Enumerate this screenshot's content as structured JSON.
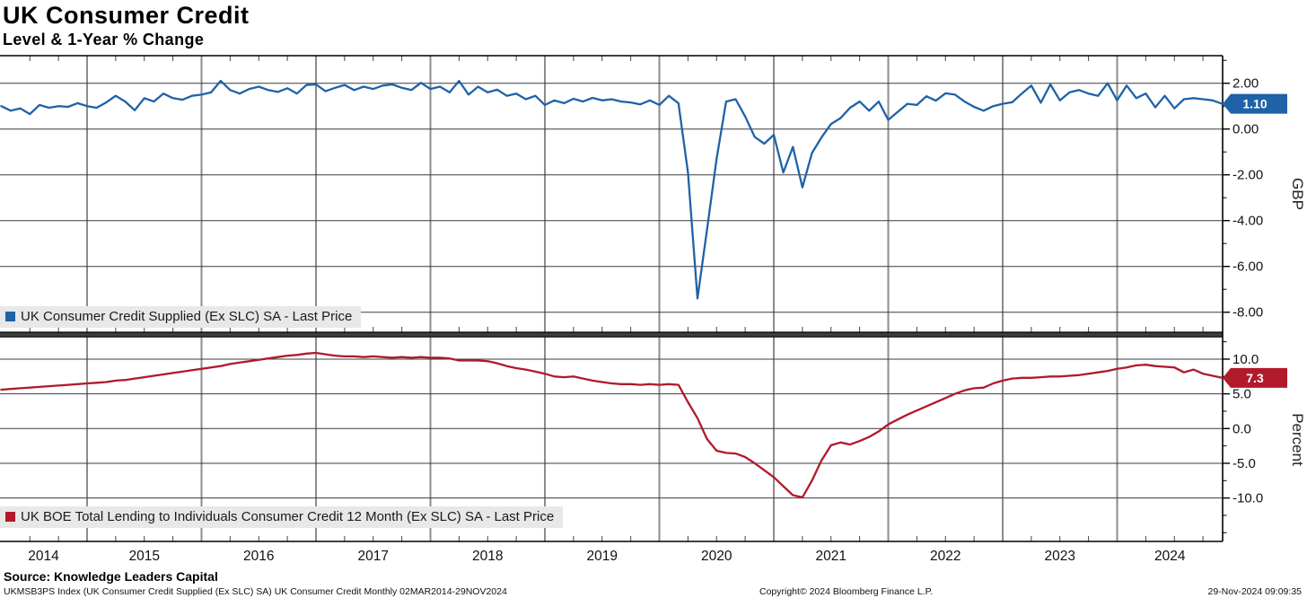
{
  "header": {
    "title": "UK Consumer Credit",
    "subtitle": "Level & 1-Year % Change"
  },
  "colors": {
    "blue_series": "#1f62a8",
    "red_series": "#b01a2b",
    "grid_vertical": "#8c8c8c",
    "grid_horizontal": "#3c3c3c",
    "axis": "#000000",
    "legend_background": "#e8e8e8",
    "badge_text": "#ffffff"
  },
  "footer": {
    "source": "Source: Knowledge Leaders Capital",
    "security_line": "UKMSB3PS Index (UK Consumer Credit Supplied (Ex SLC) SA) UK Consumer Credit  Monthly 02MAR2014-29NOV2024",
    "copyright": "Copyright© 2024 Bloomberg Finance L.P.",
    "timestamp": "29-Nov-2024 09:09:35"
  },
  "x_axis": {
    "categories": [
      "2014",
      "2015",
      "2016",
      "2017",
      "2018",
      "2019",
      "2020",
      "2021",
      "2022",
      "2023",
      "2024"
    ],
    "frequency": "monthly",
    "start": "2014-03",
    "end": "2024-11"
  },
  "chart_data": [
    {
      "type": "line",
      "panel": "top",
      "legend": "UK Consumer Credit Supplied (Ex SLC) SA - Last Price",
      "axis_title": "GBP",
      "last_price_label": "1.10",
      "last_value": 1.1,
      "color": "#1f62a8",
      "ylim": [
        -8.9,
        3.2
      ],
      "yticks": [
        2,
        0,
        -2,
        -4,
        -6,
        -8
      ],
      "ytick_labels": [
        "2.00",
        "0.00",
        "-2.00",
        "-4.00",
        "-6.00",
        "-8.00"
      ],
      "minor_ticks": [
        3,
        1,
        -1,
        -3,
        -5,
        -7
      ],
      "x_start": "2014-03",
      "x_end": "2024-11",
      "values": [
        1.0,
        0.8,
        0.9,
        0.65,
        1.05,
        0.93,
        1.0,
        0.97,
        1.13,
        1.0,
        0.93,
        1.16,
        1.45,
        1.2,
        0.82,
        1.35,
        1.2,
        1.55,
        1.35,
        1.28,
        1.45,
        1.5,
        1.6,
        2.1,
        1.7,
        1.55,
        1.75,
        1.85,
        1.7,
        1.62,
        1.78,
        1.55,
        1.92,
        1.95,
        1.65,
        1.8,
        1.92,
        1.7,
        1.85,
        1.75,
        1.9,
        1.95,
        1.8,
        1.7,
        2.02,
        1.75,
        1.85,
        1.6,
        2.1,
        1.5,
        1.85,
        1.6,
        1.72,
        1.45,
        1.55,
        1.3,
        1.45,
        1.05,
        1.25,
        1.13,
        1.32,
        1.2,
        1.36,
        1.25,
        1.3,
        1.2,
        1.16,
        1.08,
        1.25,
        1.05,
        1.45,
        1.13,
        -1.9,
        -7.4,
        -4.4,
        -1.3,
        1.2,
        1.3,
        0.55,
        -0.35,
        -0.64,
        -0.25,
        -1.9,
        -0.78,
        -2.55,
        -1.05,
        -0.37,
        0.22,
        0.48,
        0.93,
        1.2,
        0.8,
        1.2,
        0.4,
        0.75,
        1.1,
        1.05,
        1.43,
        1.24,
        1.56,
        1.5,
        1.2,
        0.97,
        0.8,
        1.0,
        1.1,
        1.17,
        1.55,
        1.9,
        1.15,
        1.95,
        1.25,
        1.6,
        1.7,
        1.55,
        1.45,
        2.0,
        1.25,
        1.9,
        1.35,
        1.55,
        0.95,
        1.45,
        0.9,
        1.3,
        1.35,
        1.3,
        1.25,
        1.1
      ]
    },
    {
      "type": "line",
      "panel": "bottom",
      "legend": "UK BOE Total Lending to Individuals Consumer Credit 12 Month (Ex SLC) SA - Last Price",
      "axis_title": "Percent",
      "last_price_label": "7.3",
      "last_value": 7.3,
      "color": "#b01a2b",
      "ylim": [
        -16.3,
        13.1
      ],
      "yticks": [
        10,
        5,
        0,
        -5,
        -10
      ],
      "ytick_labels": [
        "10.0",
        "5.0",
        "0.0",
        "-5.0",
        "-10.0"
      ],
      "minor_ticks": [
        12.5,
        7.5,
        2.5,
        -2.5,
        -7.5,
        -12.5,
        -15
      ],
      "x_start": "2014-03",
      "x_end": "2024-11",
      "values": [
        5.6,
        5.7,
        5.8,
        5.9,
        6.0,
        6.1,
        6.2,
        6.3,
        6.4,
        6.5,
        6.6,
        6.7,
        6.9,
        7.0,
        7.2,
        7.4,
        7.6,
        7.8,
        8.0,
        8.2,
        8.4,
        8.6,
        8.8,
        9.0,
        9.3,
        9.5,
        9.7,
        9.9,
        10.1,
        10.3,
        10.5,
        10.6,
        10.8,
        10.9,
        10.7,
        10.5,
        10.4,
        10.4,
        10.3,
        10.4,
        10.3,
        10.2,
        10.3,
        10.2,
        10.3,
        10.2,
        10.2,
        10.1,
        9.8,
        9.8,
        9.8,
        9.7,
        9.4,
        9.0,
        8.7,
        8.5,
        8.2,
        7.9,
        7.5,
        7.4,
        7.5,
        7.2,
        6.9,
        6.7,
        6.5,
        6.4,
        6.4,
        6.3,
        6.4,
        6.3,
        6.4,
        6.3,
        3.8,
        1.5,
        -1.5,
        -3.2,
        -3.5,
        -3.6,
        -4.1,
        -5.0,
        -6.0,
        -7.0,
        -8.3,
        -9.6,
        -9.9,
        -7.5,
        -4.6,
        -2.4,
        -2.0,
        -2.3,
        -1.8,
        -1.2,
        -0.4,
        0.6,
        1.3,
        2.0,
        2.6,
        3.2,
        3.8,
        4.4,
        5.0,
        5.5,
        5.8,
        5.9,
        6.5,
        6.9,
        7.2,
        7.3,
        7.3,
        7.4,
        7.5,
        7.5,
        7.6,
        7.7,
        7.9,
        8.1,
        8.3,
        8.6,
        8.8,
        9.1,
        9.2,
        9.0,
        8.9,
        8.8,
        8.1,
        8.5,
        7.9,
        7.6,
        7.3
      ]
    }
  ]
}
